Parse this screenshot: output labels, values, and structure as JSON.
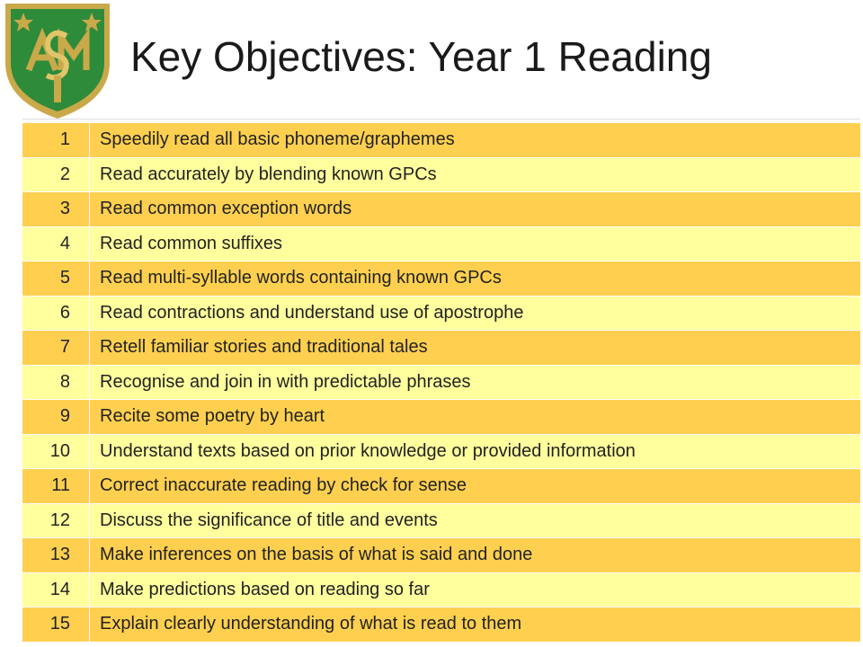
{
  "header": {
    "title": "Key Objectives: Year 1 Reading"
  },
  "table": {
    "rows": [
      [
        1,
        "Speedily read all basic phoneme/graphemes"
      ],
      [
        2,
        "Read accurately by blending known GPCs"
      ],
      [
        3,
        "Read common exception words"
      ],
      [
        4,
        "Read common suffixes"
      ],
      [
        5,
        "Read multi-syllable words containing known GPCs"
      ],
      [
        6,
        "Read contractions and understand use of apostrophe"
      ],
      [
        7,
        "Retell familiar stories and traditional tales"
      ],
      [
        8,
        "Recognise and join in with predictable phrases"
      ],
      [
        9,
        "Recite some poetry by heart"
      ],
      [
        10,
        "Understand texts based on prior knowledge or provided information"
      ],
      [
        11,
        "Correct inaccurate reading by check for sense"
      ],
      [
        12,
        "Discuss the significance of title and events"
      ],
      [
        13,
        "Make inferences on the basis of what is said and done"
      ],
      [
        14,
        "Make predictions based on reading so far"
      ],
      [
        15,
        "Explain clearly understanding of what is read to them"
      ]
    ]
  }
}
